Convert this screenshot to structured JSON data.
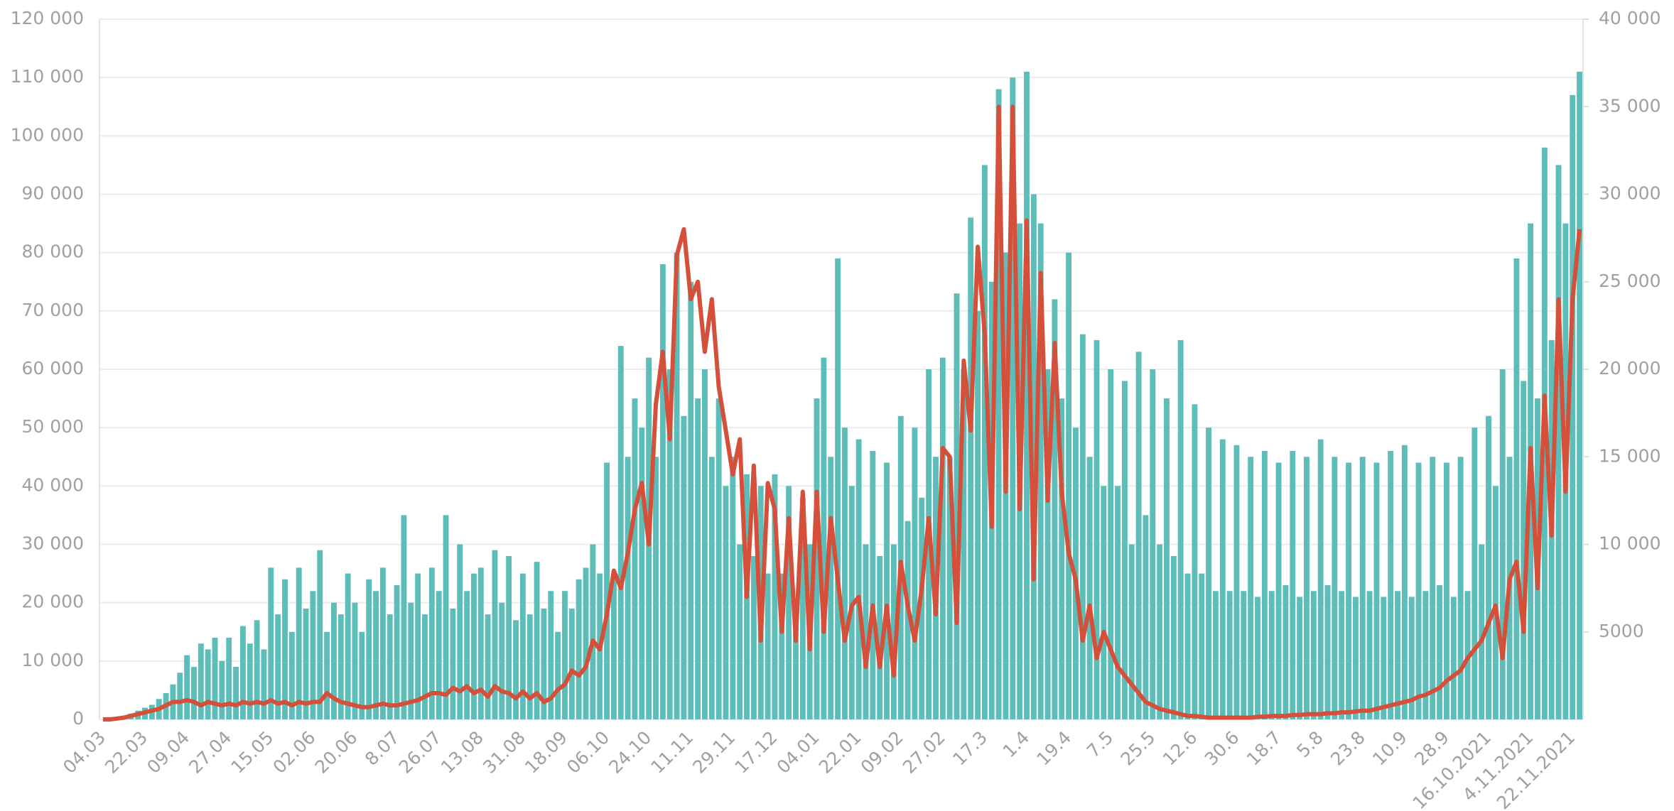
{
  "chart_data": {
    "type": "bar_line",
    "categories": [
      "04.03",
      null,
      null,
      null,
      null,
      null,
      "22.03",
      null,
      null,
      null,
      null,
      null,
      "09.04",
      null,
      null,
      null,
      null,
      null,
      "27.04",
      null,
      null,
      null,
      null,
      null,
      "15.05",
      null,
      null,
      null,
      null,
      null,
      "02.06",
      null,
      null,
      null,
      null,
      null,
      "20.06",
      null,
      null,
      null,
      null,
      null,
      "8.07",
      null,
      null,
      null,
      null,
      null,
      "26.07",
      null,
      null,
      null,
      null,
      null,
      "13.08",
      null,
      null,
      null,
      null,
      null,
      "31.08",
      null,
      null,
      null,
      null,
      null,
      "18.09",
      null,
      null,
      null,
      null,
      null,
      "06.10",
      null,
      null,
      null,
      null,
      null,
      "24.10",
      null,
      null,
      null,
      null,
      null,
      "11.11",
      null,
      null,
      null,
      null,
      null,
      "29.11",
      null,
      null,
      null,
      null,
      null,
      "17.12",
      null,
      null,
      null,
      null,
      null,
      "04.01",
      null,
      null,
      null,
      null,
      null,
      "22.01",
      null,
      null,
      null,
      null,
      null,
      "09.02",
      null,
      null,
      null,
      null,
      null,
      "27.02",
      null,
      null,
      null,
      null,
      null,
      "17.3",
      null,
      null,
      null,
      null,
      null,
      "1.4",
      null,
      null,
      null,
      null,
      null,
      "19.4",
      null,
      null,
      null,
      null,
      null,
      "7.5",
      null,
      null,
      null,
      null,
      null,
      "25.5",
      null,
      null,
      null,
      null,
      null,
      "12.6",
      null,
      null,
      null,
      null,
      null,
      "30.6",
      null,
      null,
      null,
      null,
      null,
      "18.7",
      null,
      null,
      null,
      null,
      null,
      "5.8",
      null,
      null,
      null,
      null,
      null,
      "23.8",
      null,
      null,
      null,
      null,
      null,
      "10.9",
      null,
      null,
      null,
      null,
      null,
      "28.9",
      null,
      null,
      null,
      null,
      null,
      "16.10.2021",
      null,
      null,
      null,
      null,
      null,
      "4.11.2021",
      null,
      null,
      null,
      null,
      null,
      "22.11.2021",
      null
    ],
    "series": [
      {
        "color": "#5dbdb8",
        "values": [
          0,
          0,
          200,
          500,
          1000,
          1500,
          2000,
          2500,
          3500,
          4500,
          6000,
          8000,
          11000,
          9000,
          13000,
          12000,
          14000,
          10000,
          14000,
          9000,
          16000,
          13000,
          17000,
          12000,
          26000,
          18000,
          24000,
          15000,
          26000,
          19000,
          22000,
          29000,
          15000,
          20000,
          18000,
          25000,
          20000,
          15000,
          24000,
          22000,
          26000,
          18000,
          23000,
          35000,
          20000,
          25000,
          18000,
          26000,
          22000,
          35000,
          19000,
          30000,
          22000,
          25000,
          26000,
          18000,
          29000,
          20000,
          28000,
          17000,
          25000,
          18000,
          27000,
          19000,
          22000,
          15000,
          22000,
          19000,
          24000,
          26000,
          30000,
          25000,
          44000,
          25000,
          64000,
          45000,
          55000,
          50000,
          62000,
          45000,
          78000,
          60000,
          80000,
          52000,
          75000,
          55000,
          60000,
          45000,
          55000,
          40000,
          45000,
          30000,
          42000,
          28000,
          40000,
          25000,
          42000,
          25000,
          40000,
          18000,
          38000,
          30000,
          55000,
          62000,
          45000,
          79000,
          50000,
          40000,
          48000,
          30000,
          46000,
          28000,
          44000,
          30000,
          52000,
          34000,
          50000,
          38000,
          60000,
          45000,
          62000,
          45000,
          73000,
          60000,
          86000,
          70000,
          95000,
          75000,
          108000,
          80000,
          110000,
          85000,
          111000,
          90000,
          85000,
          60000,
          72000,
          55000,
          80000,
          50000,
          66000,
          45000,
          65000,
          40000,
          60000,
          40000,
          58000,
          30000,
          63000,
          35000,
          60000,
          30000,
          55000,
          28000,
          65000,
          25000,
          54000,
          25000,
          50000,
          22000,
          48000,
          22000,
          47000,
          22000,
          45000,
          21000,
          46000,
          22000,
          44000,
          23000,
          46000,
          21000,
          45000,
          22000,
          48000,
          23000,
          45000,
          22000,
          44000,
          21000,
          45000,
          22000,
          44000,
          21000,
          46000,
          22000,
          47000,
          21000,
          44000,
          22000,
          45000,
          23000,
          44000,
          21000,
          45000,
          22000,
          50000,
          30000,
          52000,
          40000,
          60000,
          45000,
          79000,
          58000,
          85000,
          55000,
          98000,
          65000,
          95000,
          85000,
          107000,
          111000
        ]
      },
      {
        "color": "#d4503a",
        "axis": "y2",
        "values": [
          0,
          0,
          50,
          100,
          200,
          300,
          400,
          500,
          600,
          800,
          1000,
          1000,
          1100,
          1000,
          800,
          1000,
          900,
          800,
          900,
          800,
          1000,
          900,
          1000,
          900,
          1100,
          900,
          1000,
          800,
          1000,
          900,
          1000,
          1000,
          1500,
          1200,
          1000,
          900,
          800,
          700,
          700,
          800,
          900,
          800,
          800,
          900,
          1000,
          1100,
          1300,
          1500,
          1500,
          1400,
          1800,
          1600,
          1900,
          1500,
          1700,
          1300,
          1900,
          1600,
          1500,
          1200,
          1600,
          1200,
          1500,
          1000,
          1200,
          1700,
          2000,
          2800,
          2500,
          3000,
          4500,
          4000,
          6000,
          8500,
          7500,
          9500,
          12000,
          13500,
          10000,
          18000,
          21000,
          16000,
          26500,
          28000,
          24000,
          25000,
          21000,
          24000,
          19000,
          16500,
          14000,
          16000,
          7000,
          14500,
          4500,
          13500,
          12000,
          5000,
          11500,
          4500,
          13000,
          4000,
          13000,
          5000,
          11500,
          8000,
          4500,
          6500,
          7000,
          3000,
          6500,
          3000,
          6500,
          2500,
          9000,
          6500,
          4500,
          7500,
          11500,
          6000,
          15500,
          15000,
          5500,
          20500,
          16500,
          27000,
          22000,
          11000,
          35000,
          13000,
          35000,
          12000,
          28500,
          8000,
          25500,
          12500,
          21500,
          13000,
          9500,
          8000,
          4500,
          6500,
          3500,
          5000,
          4000,
          3000,
          2500,
          2000,
          1500,
          1000,
          800,
          600,
          500,
          400,
          300,
          200,
          200,
          150,
          100,
          100,
          100,
          100,
          100,
          100,
          100,
          150,
          150,
          200,
          200,
          200,
          250,
          250,
          300,
          300,
          300,
          350,
          350,
          400,
          400,
          450,
          500,
          500,
          600,
          700,
          800,
          900,
          1000,
          1100,
          1300,
          1400,
          1600,
          1800,
          2200,
          2500,
          2800,
          3500,
          4000,
          4500,
          5500,
          6500,
          3500,
          8000,
          9000,
          5000,
          15500,
          7500,
          18500,
          10500,
          24000,
          13000,
          24000,
          28000
        ]
      }
    ],
    "ylim": [
      0,
      120000
    ],
    "yticks": [
      0,
      {
        "value": 10000,
        "label": "10 000"
      },
      {
        "value": 20000,
        "label": "20 000"
      },
      {
        "value": 30000,
        "label": "30 000"
      },
      {
        "value": 40000,
        "label": "40 000"
      },
      {
        "value": 50000,
        "label": "50 000"
      },
      {
        "value": 60000,
        "label": "60 000"
      },
      {
        "value": 70000,
        "label": "70 000"
      },
      {
        "value": 80000,
        "label": "80 000"
      },
      {
        "value": 90000,
        "label": "90 000"
      },
      {
        "value": 100000,
        "label": "100 000"
      },
      {
        "value": 110000,
        "label": "110 000"
      },
      {
        "value": 120000,
        "label": "120 000"
      }
    ],
    "y2lim": [
      0,
      40000
    ],
    "y2ticks": [
      5000,
      {
        "value": 10000,
        "label": "10 000"
      },
      {
        "value": 15000,
        "label": "15 000"
      },
      {
        "value": 20000,
        "label": "20 000"
      },
      {
        "value": 25000,
        "label": "25 000"
      },
      {
        "value": 30000,
        "label": "30 000"
      },
      {
        "value": 35000,
        "label": "35 000"
      },
      {
        "value": 40000,
        "label": "40 000"
      }
    ],
    "grid": true
  }
}
